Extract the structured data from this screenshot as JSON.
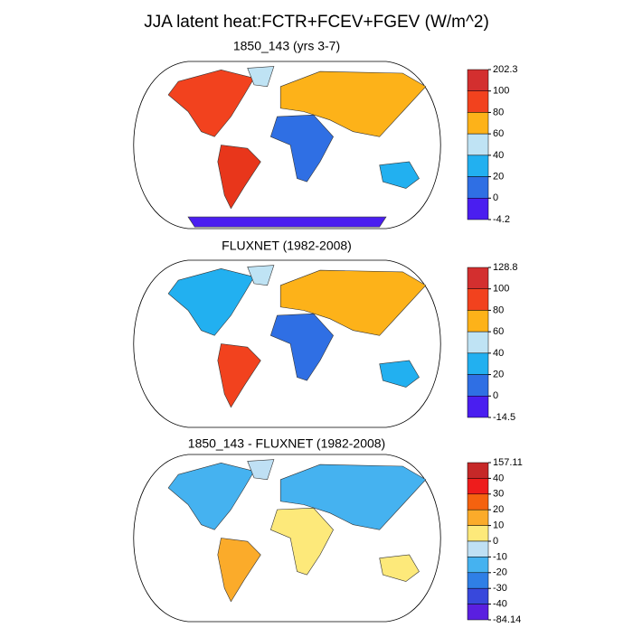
{
  "title": "JJA latent heat:FCTR+FCEV+FGEV (W/m^2)",
  "panels": [
    {
      "title": "1850_143 (yrs 3-7)",
      "colorbar": {
        "labels": [
          202.3,
          100,
          80,
          60,
          40,
          20,
          0,
          -4.2
        ],
        "colors": [
          "#d32f2f",
          "#f2421e",
          "#fdb219",
          "#bfe3f4",
          "#22b0f0",
          "#2f6fe4",
          "#4a1ef0"
        ]
      }
    },
    {
      "title": "FLUXNET (1982-2008)",
      "colorbar": {
        "labels": [
          128.8,
          100,
          80,
          60,
          40,
          20,
          0,
          -14.5
        ],
        "colors": [
          "#d32f2f",
          "#f2421e",
          "#fdb219",
          "#bfe3f4",
          "#22b0f0",
          "#2f6fe4",
          "#4a1ef0"
        ]
      }
    },
    {
      "title": "1850_143 - FLUXNET (1982-2008)",
      "colorbar": {
        "labels": [
          157.11,
          40,
          30,
          20,
          10,
          0,
          -10,
          -20,
          -30,
          -40,
          -84.14
        ],
        "colors": [
          "#c62828",
          "#ee1c1c",
          "#f5620f",
          "#fbab2a",
          "#fde97a",
          "#bfe0f4",
          "#45b2f0",
          "#2f7fe6",
          "#3848dc",
          "#5a1fe0"
        ]
      }
    }
  ]
}
